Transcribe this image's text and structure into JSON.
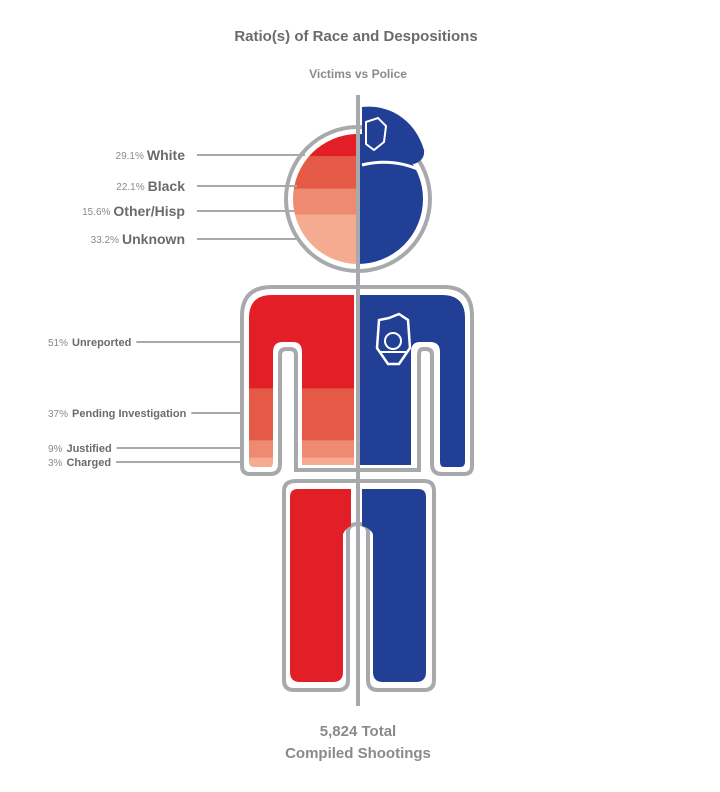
{
  "chart_data": {
    "type": "pictogram",
    "title": "Ratio(s) of Race and Despositions",
    "subtitle": "Victims vs Police",
    "race": [
      {
        "label": "White",
        "pct_label": "29.1%",
        "value": 29.1,
        "color": "#e21f26"
      },
      {
        "label": "Black",
        "pct_label": "22.1%",
        "value": 22.1,
        "color": "#e55a46"
      },
      {
        "label": "Other/Hisp",
        "pct_label": "15.6%",
        "value": 15.6,
        "color": "#ee8a6f"
      },
      {
        "label": "Unknown",
        "pct_label": "33.2%",
        "value": 33.2,
        "color": "#f4ab90"
      }
    ],
    "dispositions": [
      {
        "label": "Unreported",
        "pct_label": "51%",
        "value": 51,
        "color": "#e21f26"
      },
      {
        "label": "Pending Investigation",
        "pct_label": "37%",
        "value": 37,
        "color": "#e55a46"
      },
      {
        "label": "Justified",
        "pct_label": "9%",
        "value": 9,
        "color": "#ee8a6f"
      },
      {
        "label": "Charged",
        "pct_label": "3%",
        "value": 3,
        "color": "#f4ab90"
      }
    ],
    "total_line1": "5,824 Total",
    "total_line2": "Compiled Shootings"
  },
  "colors": {
    "victim_red": "#e21f26",
    "police_blue": "#223f96",
    "outline_gray": "#a7a9ac",
    "text_gray": "#6b6b6b"
  },
  "icons": {
    "police_hat": "police-hat-icon",
    "police_badge": "police-badge-icon"
  }
}
